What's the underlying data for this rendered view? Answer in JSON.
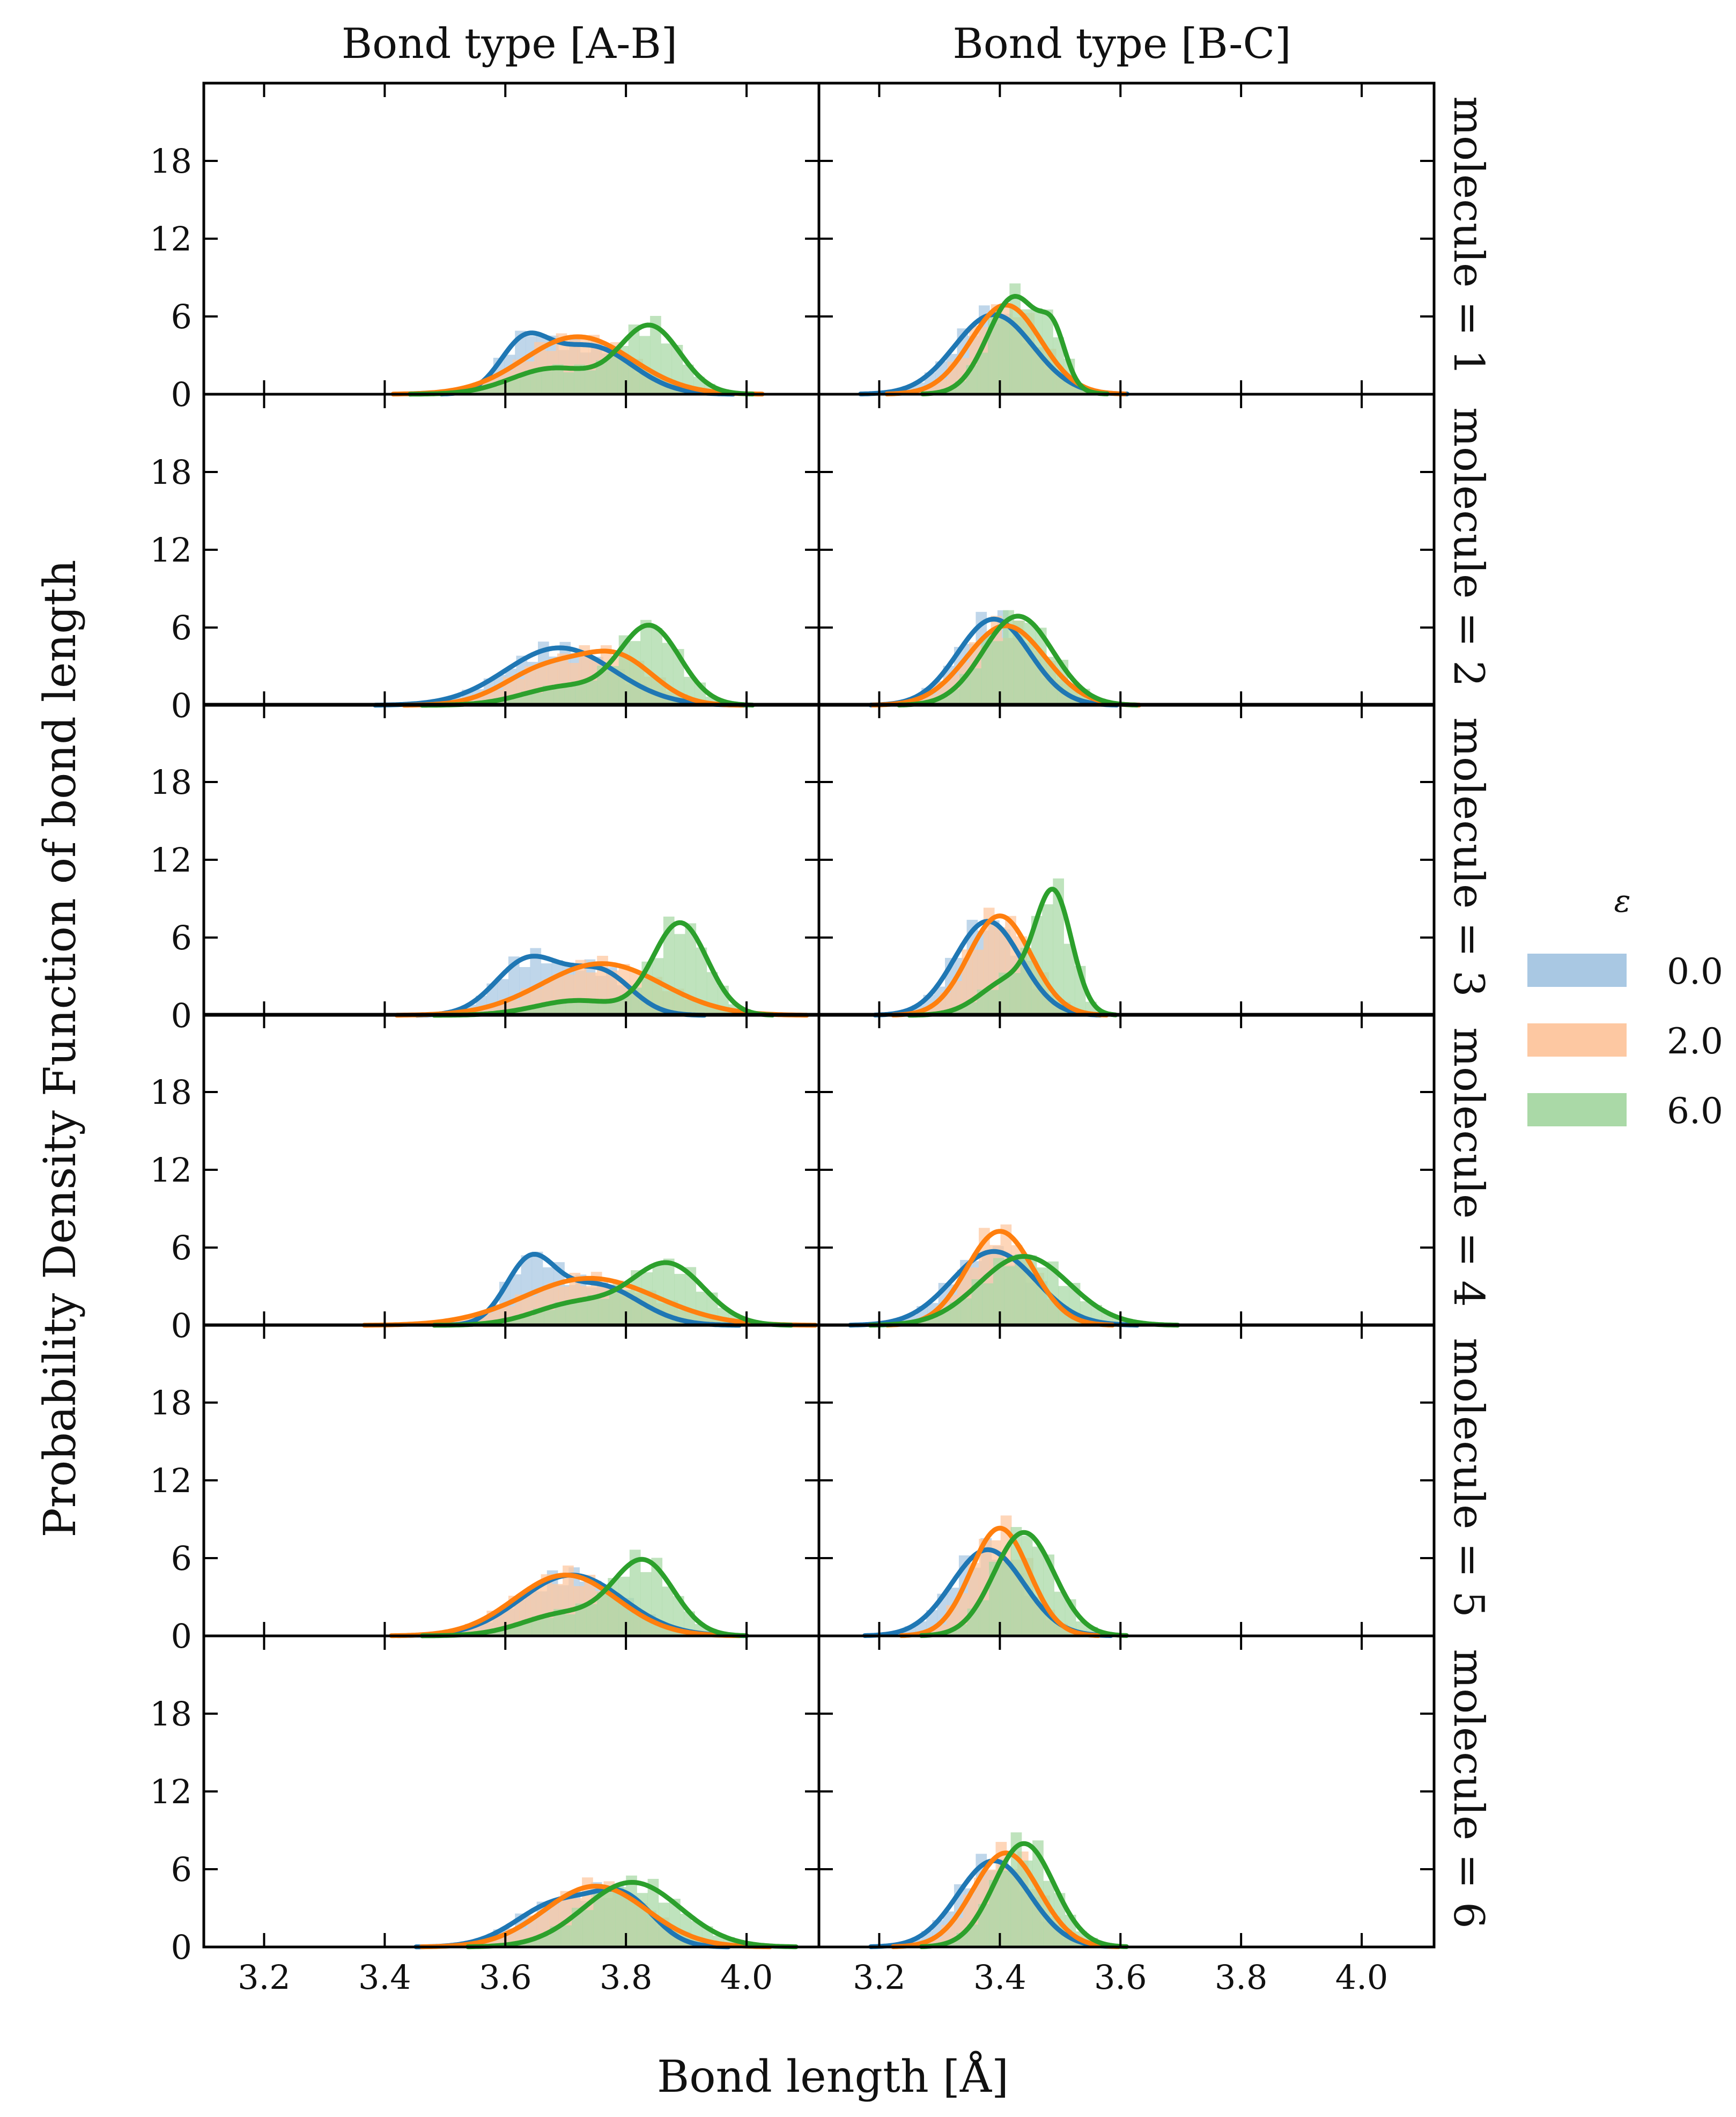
{
  "chart_data": {
    "type": "histogram-kde-grid",
    "xlabel": "Bond length [Å]",
    "ylabel": "Probability Density Function of bond length",
    "column_titles": [
      "Bond type [A-B]",
      "Bond type [B-C]"
    ],
    "row_titles": [
      "molecule = 1",
      "molecule = 2",
      "molecule = 3",
      "molecule = 4",
      "molecule = 5",
      "molecule = 6"
    ],
    "xlim": [
      3.1,
      4.12
    ],
    "ylim": [
      0,
      24
    ],
    "xticks": [
      3.2,
      3.4,
      3.6,
      3.8,
      4.0
    ],
    "xtick_labels": [
      "3.2",
      "3.4",
      "3.6",
      "3.8",
      "4.0"
    ],
    "yticks": [
      0,
      6,
      12,
      18
    ],
    "ytick_labels": [
      "0",
      "6",
      "12",
      "18"
    ],
    "legend": {
      "title": "ε",
      "position": "right",
      "entries": [
        {
          "label": "0.0",
          "color": "#1f77b4",
          "fill": "#a9c8e3"
        },
        {
          "label": "2.0",
          "color": "#ff7f0e",
          "fill": "#fdc8a2"
        },
        {
          "label": "6.0",
          "color": "#2ca02c",
          "fill": "#aad9a7"
        }
      ]
    },
    "series_note": "Each panel: histogram (translucent bars) plus KDE curve for epsilon = 0.0, 2.0, 6.0; curves approximated as sums of Gaussian components [weight, center, sd].",
    "panels": [
      {
        "molecule": 1,
        "bond": "A-B",
        "series": [
          {
            "epsilon": "0.0",
            "components": [
              [
                0.35,
                3.63,
                0.04
              ],
              [
                0.65,
                3.74,
                0.07
              ]
            ]
          },
          {
            "epsilon": "2.0",
            "components": [
              [
                1.0,
                3.72,
                0.09
              ]
            ]
          },
          {
            "epsilon": "6.0",
            "components": [
              [
                0.35,
                3.68,
                0.07
              ],
              [
                0.65,
                3.84,
                0.05
              ]
            ]
          }
        ]
      },
      {
        "molecule": 1,
        "bond": "B-C",
        "series": [
          {
            "epsilon": "0.0",
            "components": [
              [
                1.0,
                3.39,
                0.065
              ]
            ]
          },
          {
            "epsilon": "2.0",
            "components": [
              [
                1.0,
                3.41,
                0.058
              ]
            ]
          },
          {
            "epsilon": "6.0",
            "components": [
              [
                0.85,
                3.425,
                0.045
              ],
              [
                0.15,
                3.49,
                0.02
              ]
            ]
          }
        ]
      },
      {
        "molecule": 2,
        "bond": "A-B",
        "series": [
          {
            "epsilon": "0.0",
            "components": [
              [
                1.0,
                3.69,
                0.09
              ]
            ]
          },
          {
            "epsilon": "2.0",
            "components": [
              [
                0.5,
                3.67,
                0.07
              ],
              [
                0.5,
                3.79,
                0.06
              ]
            ]
          },
          {
            "epsilon": "6.0",
            "components": [
              [
                0.25,
                3.7,
                0.07
              ],
              [
                0.75,
                3.84,
                0.05
              ]
            ]
          }
        ]
      },
      {
        "molecule": 2,
        "bond": "B-C",
        "series": [
          {
            "epsilon": "0.0",
            "components": [
              [
                1.0,
                3.39,
                0.06
              ]
            ]
          },
          {
            "epsilon": "2.0",
            "components": [
              [
                1.0,
                3.41,
                0.065
              ]
            ]
          },
          {
            "epsilon": "6.0",
            "components": [
              [
                1.0,
                3.43,
                0.058
              ]
            ]
          }
        ]
      },
      {
        "molecule": 3,
        "bond": "A-B",
        "series": [
          {
            "epsilon": "0.0",
            "components": [
              [
                0.6,
                3.64,
                0.055
              ],
              [
                0.4,
                3.76,
                0.05
              ]
            ]
          },
          {
            "epsilon": "2.0",
            "components": [
              [
                1.0,
                3.76,
                0.1
              ]
            ]
          },
          {
            "epsilon": "6.0",
            "components": [
              [
                0.2,
                3.72,
                0.07
              ],
              [
                0.8,
                3.89,
                0.045
              ]
            ]
          }
        ]
      },
      {
        "molecule": 3,
        "bond": "B-C",
        "series": [
          {
            "epsilon": "0.0",
            "components": [
              [
                1.0,
                3.38,
                0.055
              ]
            ]
          },
          {
            "epsilon": "2.0",
            "components": [
              [
                1.0,
                3.4,
                0.052
              ]
            ]
          },
          {
            "epsilon": "6.0",
            "components": [
              [
                0.35,
                3.42,
                0.05
              ],
              [
                0.65,
                3.49,
                0.03
              ]
            ]
          }
        ]
      },
      {
        "molecule": 4,
        "bond": "A-B",
        "series": [
          {
            "epsilon": "0.0",
            "components": [
              [
                0.45,
                3.64,
                0.04
              ],
              [
                0.55,
                3.75,
                0.07
              ]
            ]
          },
          {
            "epsilon": "2.0",
            "components": [
              [
                1.0,
                3.74,
                0.11
              ]
            ]
          },
          {
            "epsilon": "6.0",
            "components": [
              [
                0.3,
                3.72,
                0.07
              ],
              [
                0.7,
                3.87,
                0.06
              ]
            ]
          }
        ]
      },
      {
        "molecule": 4,
        "bond": "B-C",
        "series": [
          {
            "epsilon": "0.0",
            "components": [
              [
                1.0,
                3.39,
                0.07
              ]
            ]
          },
          {
            "epsilon": "2.0",
            "components": [
              [
                1.0,
                3.4,
                0.055
              ]
            ]
          },
          {
            "epsilon": "6.0",
            "components": [
              [
                1.0,
                3.44,
                0.075
              ]
            ]
          }
        ]
      },
      {
        "molecule": 5,
        "bond": "A-B",
        "series": [
          {
            "epsilon": "0.0",
            "components": [
              [
                1.0,
                3.71,
                0.085
              ]
            ]
          },
          {
            "epsilon": "2.0",
            "components": [
              [
                1.0,
                3.7,
                0.085
              ]
            ]
          },
          {
            "epsilon": "6.0",
            "components": [
              [
                0.3,
                3.7,
                0.07
              ],
              [
                0.7,
                3.83,
                0.05
              ]
            ]
          }
        ]
      },
      {
        "molecule": 5,
        "bond": "B-C",
        "series": [
          {
            "epsilon": "0.0",
            "components": [
              [
                1.0,
                3.38,
                0.06
              ]
            ]
          },
          {
            "epsilon": "2.0",
            "components": [
              [
                1.0,
                3.4,
                0.048
              ]
            ]
          },
          {
            "epsilon": "6.0",
            "components": [
              [
                1.0,
                3.44,
                0.05
              ]
            ]
          }
        ]
      },
      {
        "molecule": 6,
        "bond": "A-B",
        "series": [
          {
            "epsilon": "0.0",
            "components": [
              [
                0.6,
                3.69,
                0.07
              ],
              [
                0.4,
                3.8,
                0.05
              ]
            ]
          },
          {
            "epsilon": "2.0",
            "components": [
              [
                1.0,
                3.75,
                0.085
              ]
            ]
          },
          {
            "epsilon": "6.0",
            "components": [
              [
                1.0,
                3.81,
                0.08
              ]
            ]
          }
        ]
      },
      {
        "molecule": 6,
        "bond": "B-C",
        "series": [
          {
            "epsilon": "0.0",
            "components": [
              [
                1.0,
                3.39,
                0.06
              ]
            ]
          },
          {
            "epsilon": "2.0",
            "components": [
              [
                1.0,
                3.41,
                0.055
              ]
            ]
          },
          {
            "epsilon": "6.0",
            "components": [
              [
                1.0,
                3.44,
                0.05
              ]
            ]
          }
        ]
      }
    ]
  }
}
